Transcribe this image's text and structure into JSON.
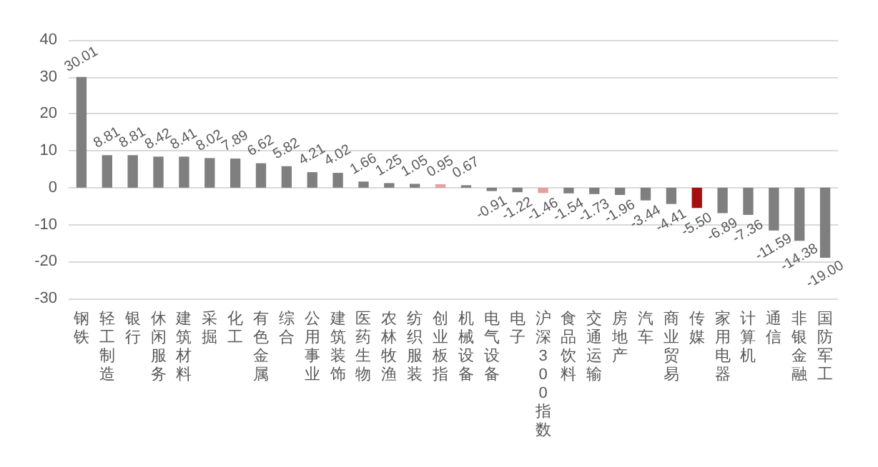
{
  "chart_data": {
    "type": "bar",
    "categories": [
      "钢铁",
      "轻工制造",
      "银行",
      "休闲服务",
      "建筑材料",
      "采掘",
      "化工",
      "有色金属",
      "综合",
      "公用事业",
      "建筑装饰",
      "医药生物",
      "农林牧渔",
      "纺织服装",
      "创业板指",
      "机械设备",
      "电气设备",
      "电子",
      "沪深300指数",
      "食品饮料",
      "交通运输",
      "房地产",
      "汽车",
      "商业贸易",
      "传媒",
      "家用电器",
      "计算机",
      "通信",
      "非银金融",
      "国防军工"
    ],
    "values": [
      30.01,
      8.81,
      8.81,
      8.42,
      8.41,
      8.02,
      7.89,
      6.62,
      5.82,
      4.21,
      4.02,
      1.66,
      1.25,
      1.05,
      0.95,
      0.67,
      -0.91,
      -1.22,
      -1.46,
      -1.54,
      -1.73,
      -1.96,
      -3.44,
      -4.41,
      -5.5,
      -6.89,
      -7.36,
      -11.59,
      -14.38,
      -19.0
    ],
    "value_labels": [
      "30.01",
      "8.81",
      "8.81",
      "8.42",
      "8.41",
      "8.02",
      "7.89",
      "6.62",
      "5.82",
      "4.21",
      "4.02",
      "1.66",
      "1.25",
      "1.05",
      "0.95",
      "0.67",
      "-0.91",
      "-1.22",
      "-1.46",
      "-1.54",
      "-1.73",
      "-1.96",
      "-3.44",
      "-4.41",
      "-5.50",
      "-6.89",
      "-7.36",
      "-11.59",
      "-14.38",
      "-19.00"
    ],
    "colors": [
      "#7f7f7f",
      "#7f7f7f",
      "#7f7f7f",
      "#7f7f7f",
      "#7f7f7f",
      "#7f7f7f",
      "#7f7f7f",
      "#7f7f7f",
      "#7f7f7f",
      "#7f7f7f",
      "#7f7f7f",
      "#7f7f7f",
      "#7f7f7f",
      "#7f7f7f",
      "#e6a0a0",
      "#7f7f7f",
      "#7f7f7f",
      "#7f7f7f",
      "#e6a0a0",
      "#7f7f7f",
      "#7f7f7f",
      "#7f7f7f",
      "#7f7f7f",
      "#7f7f7f",
      "#a50f0f",
      "#7f7f7f",
      "#7f7f7f",
      "#7f7f7f",
      "#7f7f7f",
      "#7f7f7f"
    ],
    "ylim": [
      -30,
      40
    ],
    "yticks": [
      -30,
      -20,
      -10,
      0,
      10,
      20,
      30,
      40
    ],
    "grid": "y"
  }
}
